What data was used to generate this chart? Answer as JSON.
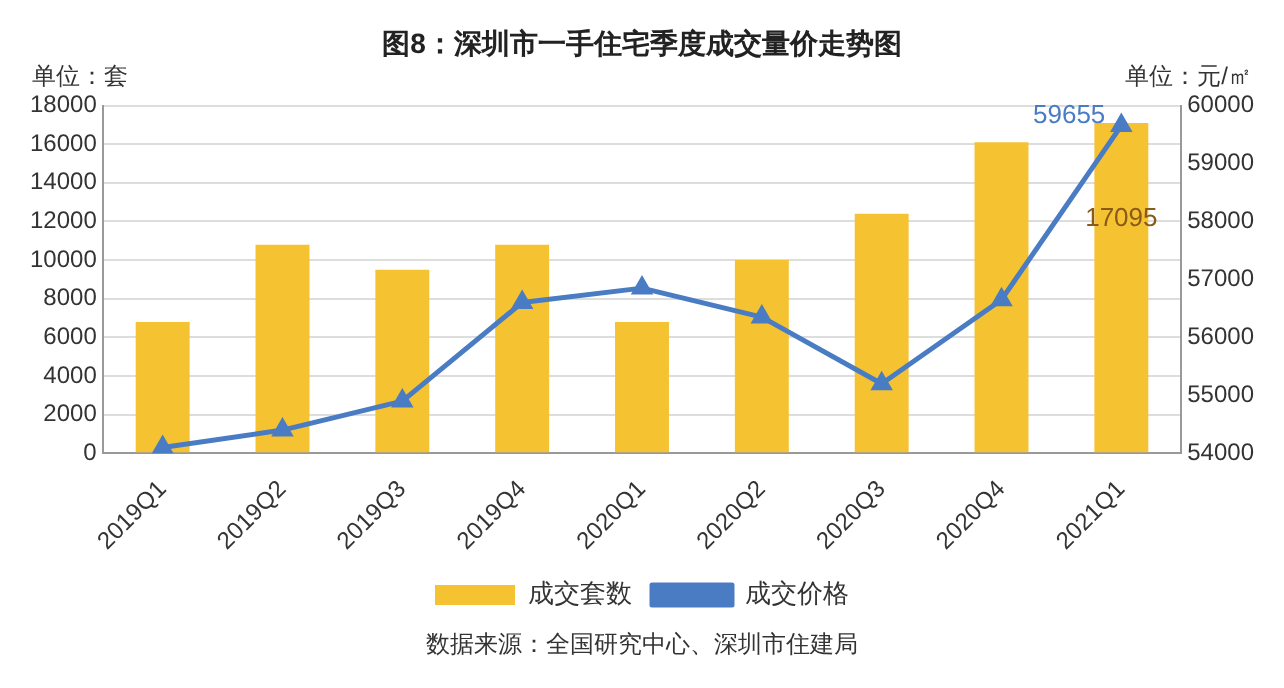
{
  "chart_data": {
    "type": "bar",
    "title": "图8：深圳市一手住宅季度成交量价走势图",
    "ylabel": "单位：套",
    "y2label": "单位：元/㎡",
    "categories": [
      "2019Q1",
      "2019Q2",
      "2019Q3",
      "2019Q4",
      "2020Q1",
      "2020Q2",
      "2020Q3",
      "2020Q4",
      "2021Q1"
    ],
    "series": [
      {
        "name": "成交套数",
        "color": "#f5c232",
        "values": [
          6800,
          10800,
          9500,
          10800,
          6800,
          10000,
          12400,
          16100,
          17095
        ],
        "value_labels": [
          null,
          null,
          null,
          null,
          null,
          null,
          null,
          null,
          "17095"
        ]
      },
      {
        "name": "成交价格",
        "type": "line",
        "axis": "y2",
        "color": "#4a7cc4",
        "marker": "triangle",
        "values": [
          54100,
          54400,
          54900,
          56600,
          56850,
          56350,
          55200,
          56650,
          59655
        ],
        "value_labels": [
          null,
          null,
          null,
          null,
          null,
          null,
          null,
          null,
          "59655"
        ]
      }
    ],
    "ylim": [
      0,
      18000
    ],
    "yticks": [
      0,
      2000,
      4000,
      6000,
      8000,
      10000,
      12000,
      14000,
      16000,
      18000
    ],
    "y2lim": [
      54000,
      60000
    ],
    "y2ticks": [
      54000,
      55000,
      56000,
      57000,
      58000,
      59000,
      60000
    ],
    "grid": "y",
    "legend": "bottom",
    "annotations": [
      "数据来源：全国研究中心、深圳市住建局"
    ]
  }
}
